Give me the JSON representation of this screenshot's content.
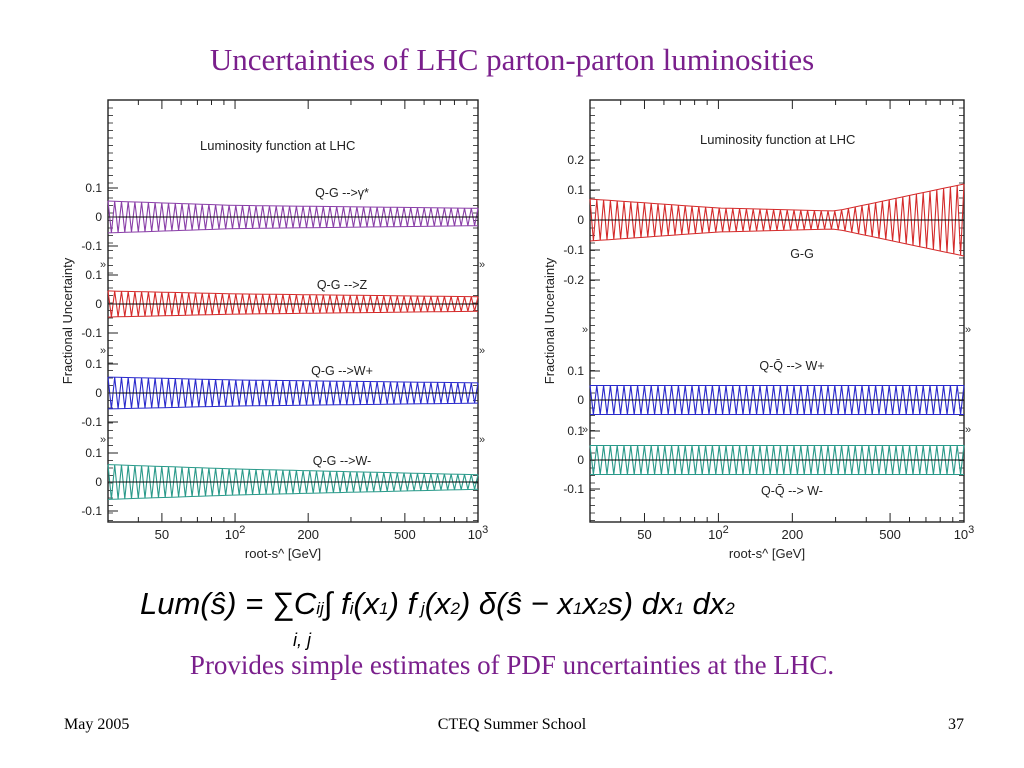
{
  "title": "Uncertainties of LHC parton-parton luminosities",
  "caption": "Provides simple estimates of PDF uncertainties at the LHC.",
  "formula": {
    "lhs": "Lum(ŝ) = ∑",
    "sum_index": "i, j",
    "body": "C",
    "body_sub": "ij",
    "rest": "∫ f",
    "f1_sub": "i",
    "arg1": "(x",
    "arg1_sub": "1",
    "f2": ") f",
    "f2_sub": " j",
    "arg2": "(x",
    "arg2_sub": "2",
    "delta": ") δ(ŝ − x",
    "d1": "1",
    "d1b": "x",
    "d2": "2",
    "d2b": "s) dx",
    "dx1": "1",
    "dx2": " dx",
    "dx2s": "2"
  },
  "footer": {
    "left": "May 2005",
    "center": "CTEQ Summer School",
    "right": "37"
  },
  "colors": {
    "title": "#7a1f8c",
    "purple": "#8a3fa8",
    "red": "#d42a2a",
    "blue": "#2a2acc",
    "teal": "#2a9a8a",
    "zero_line": "#000000"
  },
  "chart_data": [
    {
      "type": "area",
      "panel": "left",
      "annotation": "Luminosity function at LHC",
      "ylabel": "Fractional Uncertainty",
      "xlabel": "root-s^  [GeV]",
      "xscale": "log",
      "xlim": [
        30,
        1000
      ],
      "x_ticks": [
        {
          "label": "50",
          "value": 50
        },
        {
          "label": "10",
          "sup": "2",
          "value": 100
        },
        {
          "label": "200",
          "value": 200
        },
        {
          "label": "500",
          "value": 500
        },
        {
          "label": "10",
          "sup": "3",
          "value": 1000
        }
      ],
      "subplots": [
        {
          "label": "Q-G -->γ*",
          "color": "purple",
          "y_ticks": [
            "0.1",
            "0",
            "-0.1"
          ],
          "x": [
            30,
            100,
            1000
          ],
          "upper": [
            0.055,
            0.04,
            0.03
          ],
          "lower": [
            -0.055,
            -0.04,
            -0.03
          ]
        },
        {
          "label": "Q-G -->Z",
          "color": "red",
          "y_ticks": [
            "0.1",
            "0",
            "-0.1"
          ],
          "x": [
            30,
            100,
            1000
          ],
          "upper": [
            0.045,
            0.035,
            0.025
          ],
          "lower": [
            -0.045,
            -0.035,
            -0.025
          ]
        },
        {
          "label": "Q-G -->W+",
          "color": "blue",
          "y_ticks": [
            "0.1",
            "0",
            "-0.1"
          ],
          "x": [
            30,
            100,
            1000
          ],
          "upper": [
            0.055,
            0.045,
            0.035
          ],
          "lower": [
            -0.055,
            -0.045,
            -0.035
          ]
        },
        {
          "label": "Q-G -->W-",
          "color": "teal",
          "y_ticks": [
            "0.1",
            "0",
            "-0.1"
          ],
          "x": [
            30,
            100,
            1000
          ],
          "upper": [
            0.06,
            0.045,
            0.025
          ],
          "lower": [
            -0.06,
            -0.045,
            -0.025
          ]
        }
      ]
    },
    {
      "type": "area",
      "panel": "right",
      "annotation": "Luminosity function at LHC",
      "ylabel": "Fractional Uncertainty",
      "xlabel": "root-s^  [GeV]",
      "xscale": "log",
      "xlim": [
        30,
        1000
      ],
      "x_ticks": [
        {
          "label": "50",
          "value": 50
        },
        {
          "label": "10",
          "sup": "2",
          "value": 100
        },
        {
          "label": "200",
          "value": 200
        },
        {
          "label": "500",
          "value": 500
        },
        {
          "label": "10",
          "sup": "3",
          "value": 1000
        }
      ],
      "subplots": [
        {
          "label": "G-G",
          "color": "red",
          "y_ticks": [
            "0.2",
            "0.1",
            "0",
            "-0.1",
            "-0.2"
          ],
          "x": [
            30,
            100,
            300,
            1000
          ],
          "upper": [
            0.07,
            0.04,
            0.03,
            0.12
          ],
          "lower": [
            -0.07,
            -0.04,
            -0.03,
            -0.12
          ]
        },
        {
          "label": "Q-Q̄ --> W+",
          "color": "blue",
          "y_ticks": [
            "0.1",
            "0"
          ],
          "x": [
            30,
            100,
            1000
          ],
          "upper": [
            0.05,
            0.05,
            0.05
          ],
          "lower": [
            -0.05,
            -0.05,
            -0.05
          ]
        },
        {
          "label": "Q-Q̄ --> W-",
          "color": "teal",
          "y_ticks": [
            "0.1",
            "0",
            "-0.1"
          ],
          "x": [
            30,
            100,
            1000
          ],
          "upper": [
            0.05,
            0.05,
            0.05
          ],
          "lower": [
            -0.05,
            -0.05,
            -0.05
          ]
        }
      ]
    }
  ]
}
